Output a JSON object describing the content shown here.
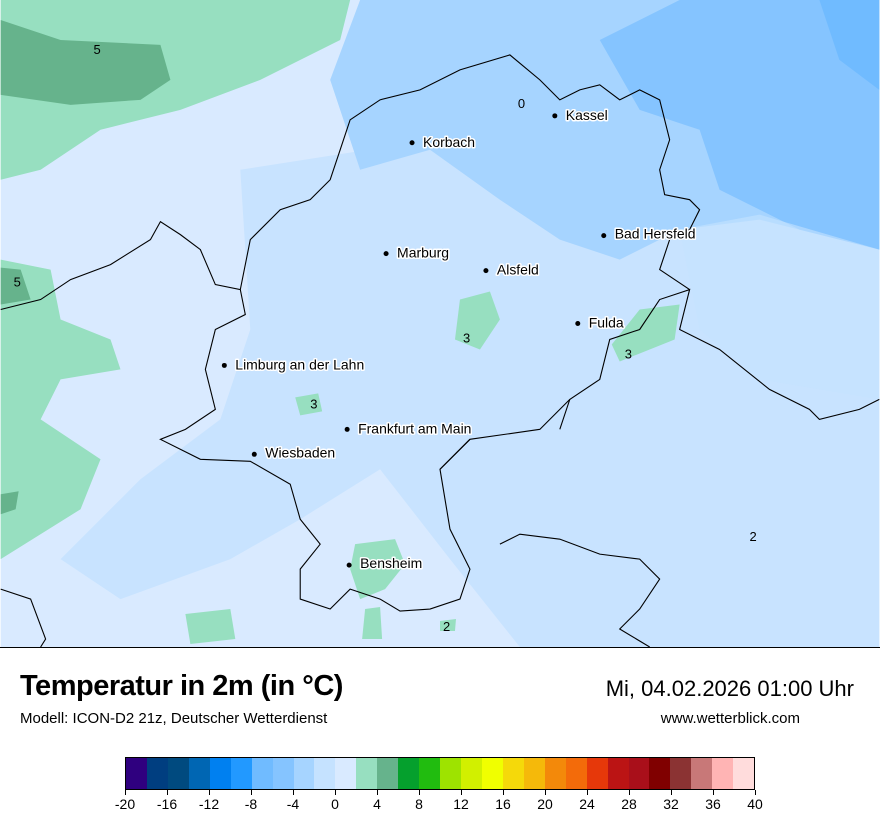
{
  "map": {
    "cities": [
      {
        "name": "Kassel"
      },
      {
        "name": "Korbach"
      },
      {
        "name": "Bad Hersfeld"
      },
      {
        "name": "Marburg"
      },
      {
        "name": "Alsfeld"
      },
      {
        "name": "Fulda"
      },
      {
        "name": "Limburg an der Lahn"
      },
      {
        "name": "Frankfurt am Main"
      },
      {
        "name": "Wiesbaden"
      },
      {
        "name": "Bensheim"
      }
    ],
    "contour_labels": [
      "5",
      "0",
      "5",
      "3",
      "3",
      "3",
      "2",
      "2"
    ]
  },
  "header": {
    "title": "Temperatur in 2m (in °C)",
    "subtitle": "Modell: ICON-D2 21z, Deutscher Wetterdienst",
    "datetime": "Mi, 04.02.2026 01:00 Uhr",
    "website": "www.wetterblick.com"
  },
  "legend": {
    "colors": [
      "#2f007f",
      "#003e80",
      "#004a7f",
      "#0066b3",
      "#0080f0",
      "#2299ff",
      "#70bbff",
      "#85c4ff",
      "#a6d4ff",
      "#c5e2ff",
      "#d9eaff",
      "#97dfc0",
      "#66b38c",
      "#05a02d",
      "#21bc0f",
      "#9ee300",
      "#d1f000",
      "#f0ff00",
      "#f5d90a",
      "#f5b90a",
      "#f3890a",
      "#f36b0a",
      "#e6380a",
      "#bb1414",
      "#a90f1a",
      "#800000",
      "#8b3333",
      "#c87878",
      "#ffb4b4",
      "#ffdcdc"
    ],
    "tick_labels": [
      "-20",
      "-16",
      "-12",
      "-8",
      "-4",
      "0",
      "4",
      "8",
      "12",
      "16",
      "20",
      "24",
      "28",
      "32",
      "36",
      "40"
    ]
  }
}
